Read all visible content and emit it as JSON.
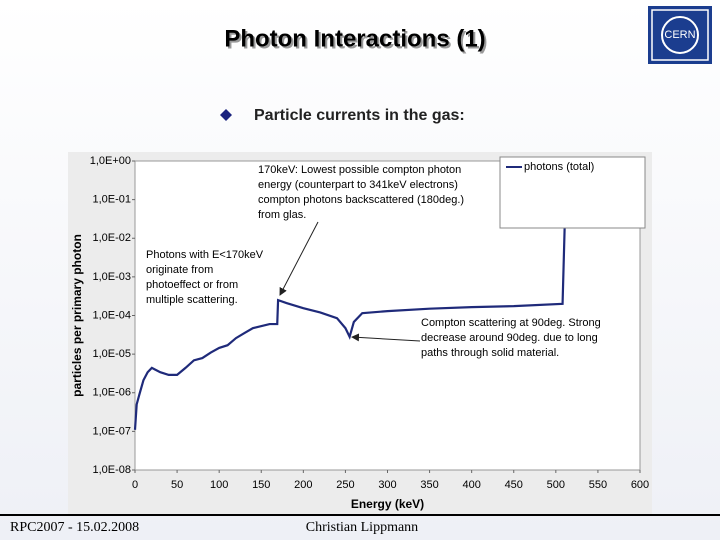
{
  "slide": {
    "title": "Photon Interactions (1)",
    "bullet": "Particle currents in the gas:",
    "logo": "CERN",
    "footer_left": "RPC2007 - 15.02.2008",
    "footer_center": "Christian Lippmann"
  },
  "chart_data": {
    "type": "line",
    "xlabel": "Energy (keV)",
    "ylabel": "particles per primary photon",
    "log_scale": "y",
    "legend": "upper right",
    "xlim": [
      0,
      600
    ],
    "xticks": [
      0,
      50,
      100,
      150,
      200,
      250,
      300,
      350,
      400,
      450,
      500,
      550,
      600
    ],
    "ylim": [
      1e-08,
      1
    ],
    "yticks": [
      {
        "value": 1,
        "label": "1,0E+00"
      },
      {
        "value": 0.1,
        "label": "1,0E-01"
      },
      {
        "value": 0.01,
        "label": "1,0E-02"
      },
      {
        "value": 0.001,
        "label": "1,0E-03"
      },
      {
        "value": 0.0001,
        "label": "1,0E-04"
      },
      {
        "value": 1e-05,
        "label": "1,0E-05"
      },
      {
        "value": 1e-06,
        "label": "1,0E-06"
      },
      {
        "value": 1e-07,
        "label": "1,0E-07"
      },
      {
        "value": 1e-08,
        "label": "1,0E-08"
      }
    ],
    "x": [
      0,
      2,
      5,
      10,
      15,
      20,
      30,
      40,
      50,
      60,
      70,
      80,
      90,
      100,
      110,
      120,
      130,
      140,
      160,
      169,
      170,
      180,
      200,
      220,
      240,
      250,
      255,
      260,
      270,
      300,
      350,
      400,
      450,
      508,
      511
    ],
    "series": [
      {
        "name": "photons (total)",
        "color": "#1f2a7a",
        "values": [
          1.1e-07,
          5e-07,
          8.7e-07,
          2.1e-06,
          3.4e-06,
          4.4e-06,
          3.4e-06,
          2.9e-06,
          2.9e-06,
          4.4e-06,
          6.9e-06,
          7.9e-06,
          1.1e-05,
          1.45e-05,
          1.7e-05,
          2.6e-05,
          3.5e-05,
          4.7e-05,
          6e-05,
          6e-05,
          0.00025,
          0.00021,
          0.000155,
          0.00012,
          8.5e-05,
          4.7e-05,
          2.8e-05,
          6.8e-05,
          0.000115,
          0.00013,
          0.00015,
          0.000165,
          0.000175,
          0.0002,
          0.05
        ]
      }
    ],
    "annotations": [
      [
        "170keV: Lowest possible compton photon",
        "energy (counterpart to 341keV electrons)",
        "compton photons backscattered (180deg.)",
        "from glas."
      ],
      [
        "Photons with E<170keV",
        "originate from",
        "photoeffect or from",
        "multiple scattering."
      ],
      [
        "Compton scattering at 90deg. Strong",
        "decrease around 90deg. due to long",
        "paths through solid material."
      ]
    ]
  }
}
